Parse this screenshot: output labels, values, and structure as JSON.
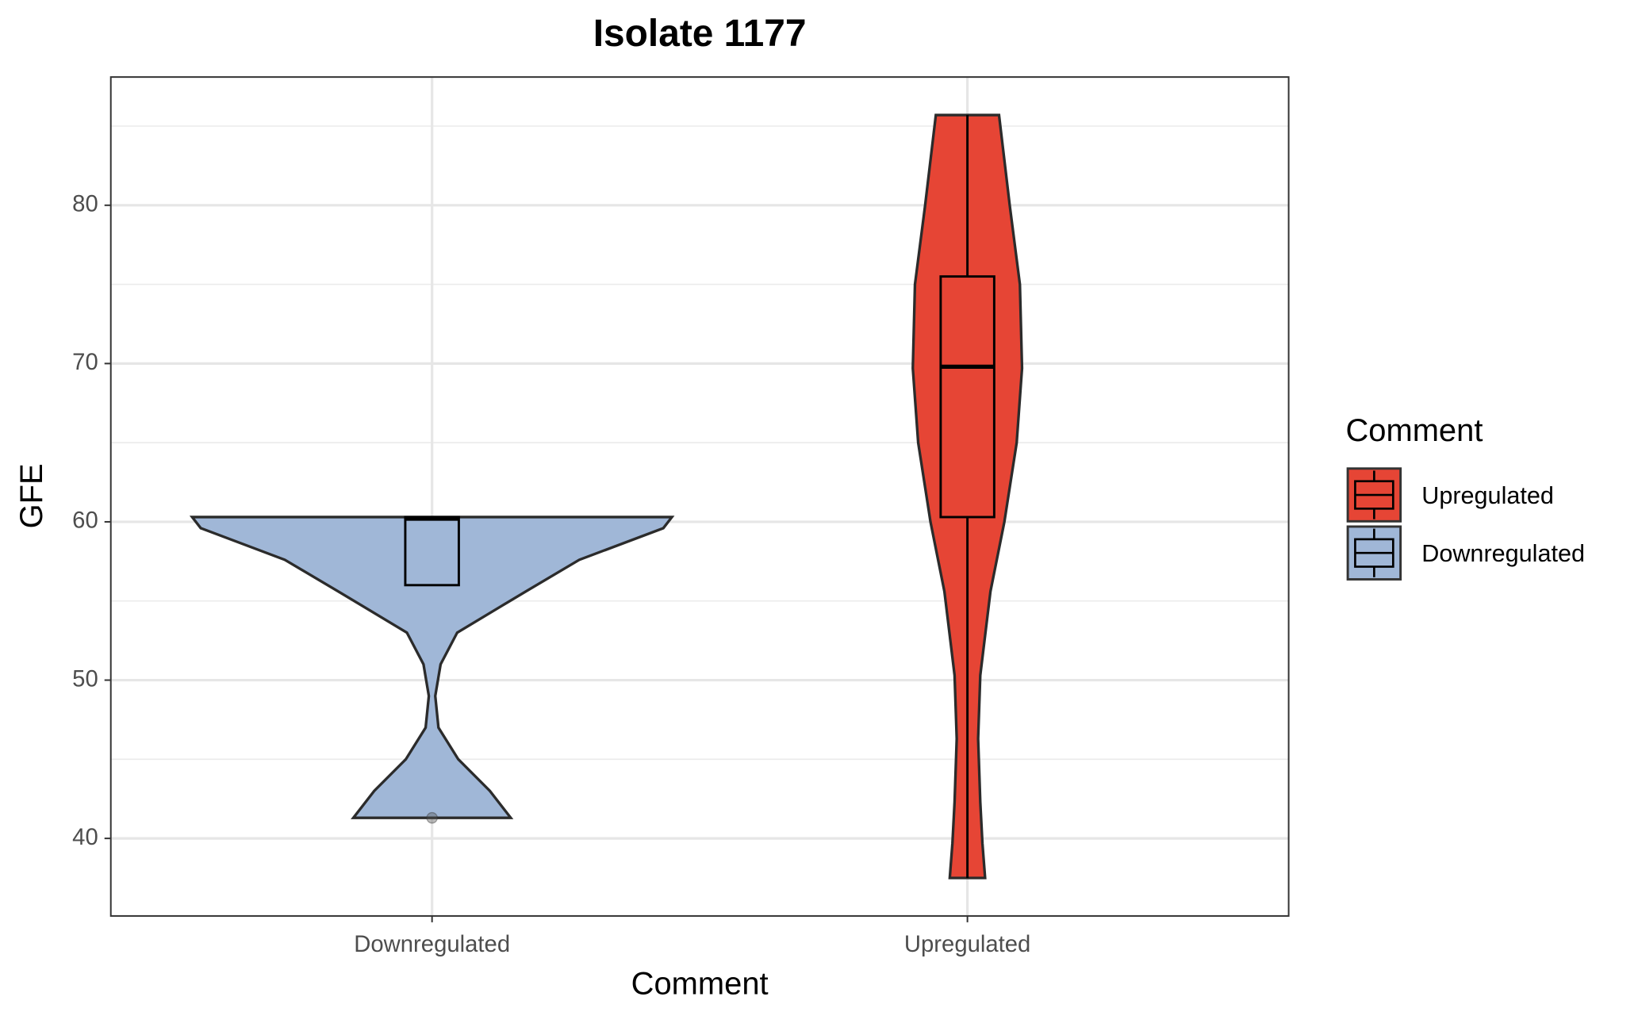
{
  "chart_data": {
    "type": "violin",
    "title": "Isolate 1177",
    "x_label": "Comment",
    "y_label": "GFE",
    "categories": [
      "Downregulated",
      "Upregulated"
    ],
    "series": [
      {
        "name": "Downregulated",
        "color": "#a0b7d7",
        "violin": {
          "y": [
            60.3,
            59.6,
            57.6,
            55.6,
            53.0,
            51.0,
            49.0,
            47.0,
            45.0,
            43.0,
            41.3
          ],
          "width": [
            0.448,
            0.432,
            0.275,
            0.175,
            0.047,
            0.016,
            0.006,
            0.012,
            0.049,
            0.108,
            0.147
          ]
        },
        "box": {
          "whisker_low": 56.0,
          "q1": 56.0,
          "median": 60.2,
          "q3": 60.3,
          "whisker_high": 60.3
        },
        "outliers": [
          41.3
        ]
      },
      {
        "name": "Upregulated",
        "color": "#e64535",
        "violin": {
          "y": [
            85.7,
            80.0,
            75.0,
            69.7,
            65.0,
            60.0,
            55.6,
            50.3,
            46.3,
            42.3,
            39.7,
            37.5
          ],
          "width": [
            0.059,
            0.079,
            0.098,
            0.102,
            0.092,
            0.069,
            0.043,
            0.024,
            0.02,
            0.024,
            0.028,
            0.033
          ]
        },
        "box": {
          "whisker_low": 37.5,
          "q1": 60.3,
          "median": 69.8,
          "q3": 75.5,
          "whisker_high": 85.7
        },
        "outliers": []
      }
    ],
    "box_width": 0.1,
    "ylim": [
      35.1,
      88.1
    ],
    "yticks": [
      40,
      50,
      60,
      70,
      80
    ],
    "yminor": [
      45,
      55,
      65,
      75,
      85
    ],
    "grid": true,
    "legend": {
      "title": "Comment",
      "position": "right"
    }
  }
}
